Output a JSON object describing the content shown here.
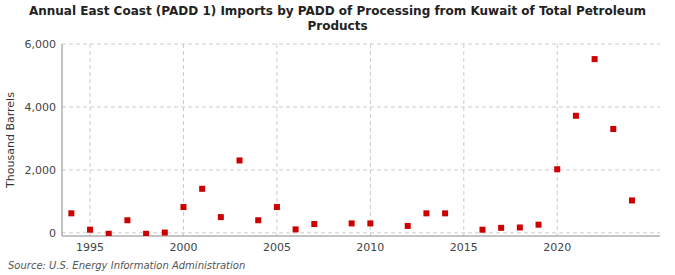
{
  "chart_data": {
    "type": "scatter",
    "title": "Annual East Coast (PADD 1) Imports by PADD of Processing from Kuwait of Total Petroleum\nProducts",
    "y_label": "Thousand Barrels",
    "annotations": [
      "Source: U.S. Energy Information Administration"
    ],
    "x": [
      1994,
      1995,
      1996,
      1997,
      1998,
      1999,
      2000,
      2001,
      2002,
      2003,
      2004,
      2005,
      2006,
      2007,
      2009,
      2010,
      2012,
      2013,
      2014,
      2016,
      2017,
      2018,
      2019,
      2020,
      2021,
      2022,
      2023,
      2024
    ],
    "values": [
      620,
      100,
      -30,
      400,
      -30,
      10,
      820,
      1400,
      500,
      2300,
      400,
      820,
      110,
      280,
      300,
      300,
      220,
      620,
      620,
      100,
      160,
      170,
      260,
      2020,
      3720,
      5520,
      3300,
      1030
    ],
    "color": "#cc0000",
    "marker": "square",
    "xlim": [
      1993.5,
      2025.5
    ],
    "ylim": [
      -100,
      6000
    ],
    "xticks": [
      1995,
      2000,
      2005,
      2010,
      2015,
      2020
    ],
    "yticks": [
      0,
      {
        "value": 2000,
        "label": "2,000"
      },
      {
        "value": 4000,
        "label": "4,000"
      },
      {
        "value": 6000,
        "label": "6,000"
      }
    ],
    "grid": true
  }
}
